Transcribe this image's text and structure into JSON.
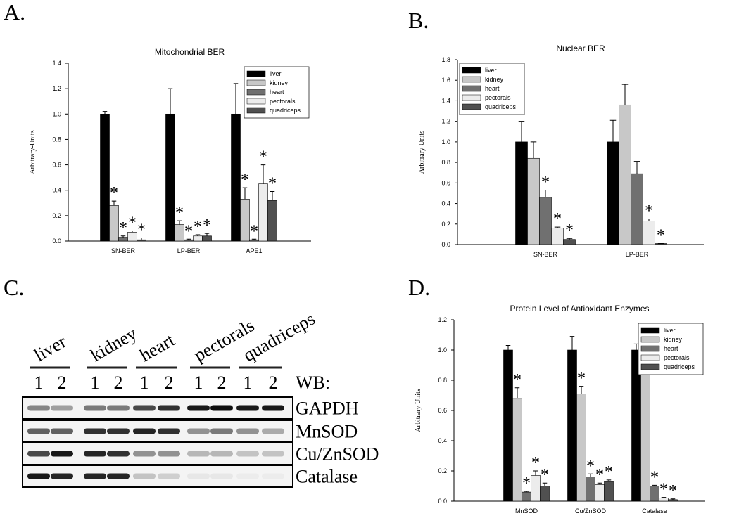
{
  "chart_data": [
    {
      "type": "bar",
      "panel_label": "A.",
      "title": "Mitochondrial BER",
      "y_label": "Arbitrary-Units",
      "categories": [
        "SN-BER",
        "LP-BER",
        "APE1"
      ],
      "ylim": [
        0,
        1.4
      ],
      "yticks": [
        {
          "value": 0,
          "label": "0.0"
        },
        {
          "value": 0.2,
          "label": "0.2"
        },
        {
          "value": 0.4,
          "label": "0.4"
        },
        {
          "value": 0.6,
          "label": "0.6"
        },
        {
          "value": 0.8,
          "label": "0.8"
        },
        {
          "value": 1,
          "label": "1.0"
        },
        {
          "value": 1.2,
          "label": "1.2"
        },
        {
          "value": 1.4,
          "label": "1.4"
        }
      ],
      "legend": "upper right",
      "significance_marker": "*",
      "series": [
        {
          "name": "liver",
          "color": "#000000",
          "values": [
            1.0,
            1.0,
            1.0
          ],
          "errors": [
            0.02,
            0.2,
            0.24
          ],
          "significant": [
            false,
            false,
            false
          ]
        },
        {
          "name": "kidney",
          "color": "#c8c8c8",
          "values": [
            0.28,
            0.13,
            0.33
          ],
          "errors": [
            0.035,
            0.03,
            0.09
          ],
          "significant": [
            true,
            true,
            true
          ]
        },
        {
          "name": "heart",
          "color": "#707070",
          "values": [
            0.03,
            0.01,
            0.01
          ],
          "errors": [
            0.01,
            0.005,
            0.005
          ],
          "significant": [
            true,
            true,
            true
          ]
        },
        {
          "name": "pectorals",
          "color": "#ececec",
          "values": [
            0.07,
            0.04,
            0.45
          ],
          "errors": [
            0.01,
            0.01,
            0.15
          ],
          "significant": [
            true,
            true,
            true
          ]
        },
        {
          "name": "quadriceps",
          "color": "#505050",
          "values": [
            0.01,
            0.04,
            0.32
          ],
          "errors": [
            0.015,
            0.02,
            0.07
          ],
          "significant": [
            true,
            true,
            true
          ]
        }
      ]
    },
    {
      "type": "bar",
      "panel_label": "B.",
      "title": "Nuclear BER",
      "y_label": "Arbitrary Units",
      "categories": [
        "SN-BER",
        "LP-BER"
      ],
      "ylim": [
        0,
        1.8
      ],
      "yticks": [
        {
          "value": 0,
          "label": "0.0"
        },
        {
          "value": 0.2,
          "label": "0.2"
        },
        {
          "value": 0.4,
          "label": "0.4"
        },
        {
          "value": 0.6,
          "label": "0.6"
        },
        {
          "value": 0.8,
          "label": "0.8"
        },
        {
          "value": 1,
          "label": "1.0"
        },
        {
          "value": 1.2,
          "label": "1.2"
        },
        {
          "value": 1.4,
          "label": "1.4"
        },
        {
          "value": 1.6,
          "label": "1.6"
        },
        {
          "value": 1.8,
          "label": "1.8"
        }
      ],
      "legend": "upper left",
      "significance_marker": "*",
      "series": [
        {
          "name": "liver",
          "color": "#000000",
          "values": [
            1.0,
            1.0
          ],
          "errors": [
            0.2,
            0.21
          ],
          "significant": [
            false,
            false
          ]
        },
        {
          "name": "kidney",
          "color": "#c8c8c8",
          "values": [
            0.84,
            1.36
          ],
          "errors": [
            0.16,
            0.2
          ],
          "significant": [
            false,
            false
          ]
        },
        {
          "name": "heart",
          "color": "#707070",
          "values": [
            0.46,
            0.69
          ],
          "errors": [
            0.07,
            0.12
          ],
          "significant": [
            true,
            false
          ]
        },
        {
          "name": "pectorals",
          "color": "#ececec",
          "values": [
            0.16,
            0.23
          ],
          "errors": [
            0.01,
            0.02
          ],
          "significant": [
            true,
            true
          ]
        },
        {
          "name": "quadriceps",
          "color": "#505050",
          "values": [
            0.05,
            0.01
          ],
          "errors": [
            0.01,
            0.0
          ],
          "significant": [
            true,
            true
          ]
        }
      ]
    },
    {
      "type": "bar",
      "panel_label": "D.",
      "title": "Protein Level of Antioxidant Enzymes",
      "y_label": "Arbitrary Units",
      "categories": [
        "MnSOD",
        "Cu/ZnSOD",
        "Catalase"
      ],
      "ylim": [
        0,
        1.2
      ],
      "yticks": [
        {
          "value": 0,
          "label": "0.0"
        },
        {
          "value": 0.2,
          "label": "0.2"
        },
        {
          "value": 0.4,
          "label": "0.4"
        },
        {
          "value": 0.6,
          "label": "0.6"
        },
        {
          "value": 0.8,
          "label": "0.8"
        },
        {
          "value": 1,
          "label": "1.0"
        },
        {
          "value": 1.2,
          "label": "1.2"
        }
      ],
      "legend": "upper right",
      "significance_marker": "*",
      "series": [
        {
          "name": "liver",
          "color": "#000000",
          "values": [
            1.0,
            1.0,
            1.0
          ],
          "errors": [
            0.03,
            0.09,
            0.04
          ],
          "significant": [
            false,
            false,
            false
          ]
        },
        {
          "name": "kidney",
          "color": "#c8c8c8",
          "values": [
            0.68,
            0.71,
            0.91
          ],
          "errors": [
            0.07,
            0.05,
            0.08
          ],
          "significant": [
            true,
            true,
            false
          ]
        },
        {
          "name": "heart",
          "color": "#707070",
          "values": [
            0.06,
            0.16,
            0.1
          ],
          "errors": [
            0.005,
            0.02,
            0.005
          ],
          "significant": [
            true,
            true,
            true
          ]
        },
        {
          "name": "pectorals",
          "color": "#ececec",
          "values": [
            0.17,
            0.11,
            0.02
          ],
          "errors": [
            0.03,
            0.01,
            0.005
          ],
          "significant": [
            true,
            true,
            true
          ]
        },
        {
          "name": "quadriceps",
          "color": "#505050",
          "values": [
            0.1,
            0.13,
            0.01
          ],
          "errors": [
            0.02,
            0.01,
            0.005
          ],
          "significant": [
            true,
            true,
            true
          ]
        }
      ]
    }
  ],
  "blot": {
    "panel_label": "C.",
    "wb_label": "WB:",
    "groups": [
      {
        "name": "liver",
        "lanes": [
          "1",
          "2"
        ]
      },
      {
        "name": "kidney",
        "lanes": [
          "1",
          "2"
        ]
      },
      {
        "name": "heart",
        "lanes": [
          "1",
          "2"
        ]
      },
      {
        "name": "pectorals",
        "lanes": [
          "1",
          "2"
        ]
      },
      {
        "name": "quadriceps",
        "lanes": [
          "1",
          "2"
        ]
      }
    ],
    "proteins": [
      "GAPDH",
      "MnSOD",
      "Cu/ZnSOD",
      "Catalase"
    ]
  }
}
